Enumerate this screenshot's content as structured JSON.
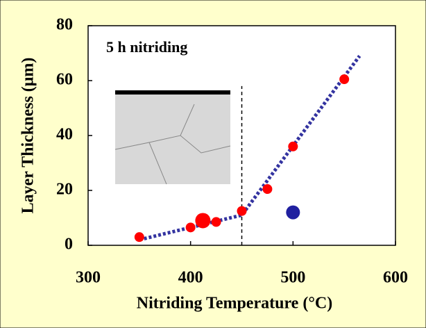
{
  "chart_data": {
    "type": "scatter",
    "x_label": "Nitriding Temperature (°C)",
    "y_label": "Layer Thickness (μm)",
    "annotation": "5 h nitriding",
    "xlim": [
      300,
      600
    ],
    "xticks": [
      300,
      400,
      500,
      600
    ],
    "ylim": [
      0,
      80
    ],
    "yticks": [
      0,
      20,
      40,
      60,
      80
    ],
    "series": [
      {
        "kind": "points",
        "color": "#ff0000",
        "x": [
          350,
          400,
          412,
          425,
          450,
          475,
          500,
          550
        ],
        "values": [
          3,
          6.5,
          9,
          8.5,
          12.5,
          20.5,
          36,
          60.5
        ],
        "sizes": [
          7,
          7,
          11,
          7,
          7,
          7,
          7,
          7
        ]
      },
      {
        "kind": "points",
        "color": "#2020a0",
        "x": [
          500
        ],
        "values": [
          12
        ],
        "sizes": [
          10
        ]
      },
      {
        "kind": "line",
        "style": "dotted",
        "color": "#3333a0",
        "x": [
          350,
          450,
          565
        ],
        "values": [
          2,
          11,
          69
        ]
      },
      {
        "kind": "line",
        "style": "dashed",
        "color": "#000000",
        "x": [
          450,
          450
        ],
        "values": [
          0,
          58
        ]
      }
    ]
  }
}
